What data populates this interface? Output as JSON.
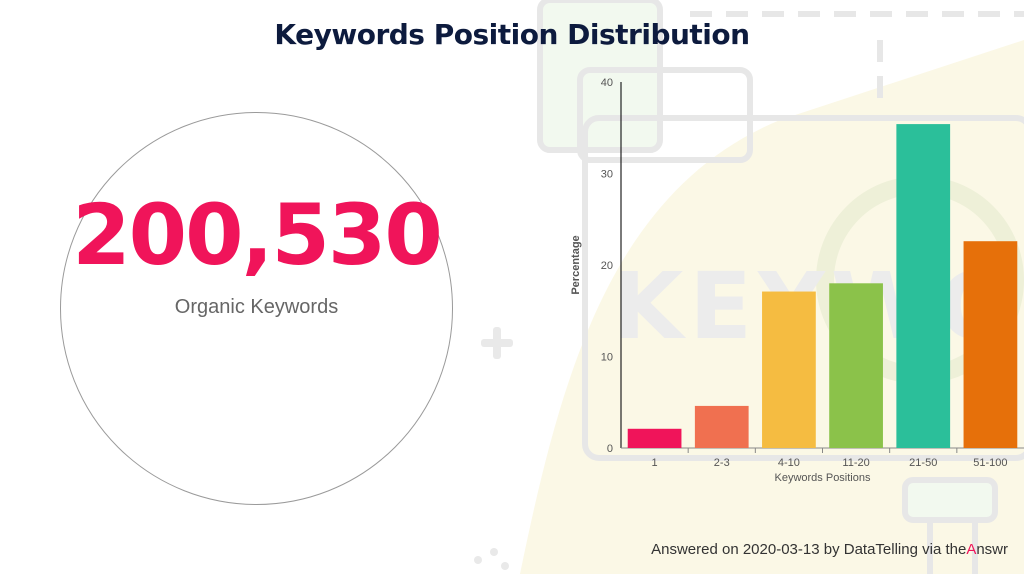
{
  "title": "Keywords Position Distribution",
  "kpi": {
    "value": "200,530",
    "label": "Organic Keywords"
  },
  "footer": {
    "prefix": "Answered on 2020-03-13 by DataTelling via the",
    "accent": "A",
    "suffix": "nswr"
  },
  "background_watermark": "KEYWORDS",
  "chart_data": {
    "type": "bar",
    "categories": [
      "1",
      "2-3",
      "4-10",
      "11-20",
      "21-50",
      "51-100"
    ],
    "values": [
      2.1,
      4.6,
      17.1,
      18.0,
      35.4,
      22.6
    ],
    "colors": [
      "#f0145a",
      "#f07050",
      "#f5bc41",
      "#8bc24a",
      "#2bbf9a",
      "#e6700a"
    ],
    "xlabel": "Keywords Positions",
    "ylabel": "Percentage",
    "ylim": [
      0,
      40
    ],
    "yticks": [
      0,
      10,
      20,
      30,
      40
    ],
    "grid": false
  }
}
